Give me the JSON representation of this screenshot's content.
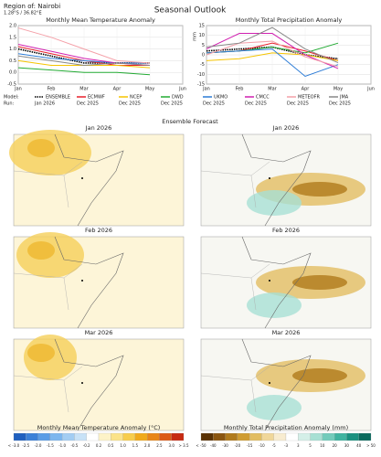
{
  "header": {
    "region": "Region of: Nairobi",
    "coords": "1.28°S / 36.82°E",
    "title": "Seasonal Outlook"
  },
  "legend": {
    "model_label": "Model:",
    "run_label": "Run:",
    "runs": [
      "Jan 2026",
      "Dec 2025",
      "Dec 2025",
      "Dec 2025",
      "Dec 2025",
      "Dec 2025",
      "Dec 2025",
      "Dec 2025"
    ]
  },
  "chart_data": [
    {
      "type": "line",
      "title": "Monthly Mean Temperature Anomaly",
      "categories": [
        "Jan",
        "Feb",
        "Mar",
        "Apr",
        "May",
        "Jun"
      ],
      "ylim": [
        -0.5,
        2.0
      ],
      "yticks": [
        -0.5,
        {
          "value": 0,
          "label": "0.0"
        },
        0.5,
        {
          "value": 1,
          "label": "1.0"
        },
        1.5,
        {
          "value": 2,
          "label": "2.0"
        }
      ],
      "grid": true,
      "series": [
        {
          "name": "ENSEMBLE",
          "color": "#000000",
          "dashed": true,
          "values": [
            1.0,
            0.7,
            0.4,
            0.4,
            0.4,
            null
          ]
        },
        {
          "name": "ECMWF",
          "color": "#e8202a",
          "values": [
            1.1,
            0.8,
            0.5,
            0.3,
            0.3,
            null
          ]
        },
        {
          "name": "NCEP",
          "color": "#f5c400",
          "values": [
            0.5,
            0.3,
            0.3,
            0.3,
            0.2,
            null
          ]
        },
        {
          "name": "DWD",
          "color": "#22aa33",
          "values": [
            0.2,
            0.1,
            0.0,
            0.0,
            -0.1,
            null
          ]
        },
        {
          "name": "UKMO",
          "color": "#2b7bd6",
          "values": [
            0.8,
            0.6,
            0.5,
            0.4,
            0.4,
            null
          ]
        },
        {
          "name": "CMCC",
          "color": "#d020b0",
          "values": [
            1.2,
            0.9,
            0.6,
            0.4,
            0.3,
            null
          ]
        },
        {
          "name": "METEOFR",
          "color": "#f4a0a8",
          "values": [
            1.9,
            1.5,
            1.0,
            0.5,
            0.4,
            null
          ]
        },
        {
          "name": "JMA",
          "color": "#888888",
          "values": [
            0.7,
            0.5,
            0.3,
            0.4,
            0.3,
            null
          ]
        }
      ]
    },
    {
      "type": "line",
      "title": "Monthly Total Precipitation Anomaly",
      "ylabel": "mm",
      "categories": [
        "Jan",
        "Feb",
        "Mar",
        "Apr",
        "May",
        "Jun"
      ],
      "ylim": [
        -15,
        15
      ],
      "yticks": [
        -15,
        -10,
        -5,
        0,
        5,
        10,
        15
      ],
      "grid": true,
      "series": [
        {
          "color": "#000000",
          "dashed": true,
          "values": [
            2,
            3,
            4,
            0,
            -2,
            null
          ]
        },
        {
          "color": "#e8202a",
          "values": [
            1,
            2,
            6,
            2,
            -3,
            null
          ]
        },
        {
          "color": "#f5c400",
          "values": [
            -3,
            -2,
            1,
            0,
            -3,
            null
          ]
        },
        {
          "color": "#22aa33",
          "values": [
            1,
            2,
            4,
            1,
            6,
            null
          ]
        },
        {
          "color": "#2b7bd6",
          "values": [
            1,
            2,
            3,
            -11,
            -5,
            null
          ]
        },
        {
          "color": "#d020b0",
          "values": [
            3,
            11,
            11,
            0,
            -7,
            null
          ]
        },
        {
          "color": "#f4a0a8",
          "values": [
            0,
            6,
            7,
            -1,
            -6,
            null
          ]
        },
        {
          "color": "#888888",
          "values": [
            4,
            6,
            14,
            3,
            -4,
            null
          ]
        }
      ]
    }
  ],
  "forecast": {
    "title": "Ensemble Forecast",
    "rows": [
      {
        "left": "Jan 2026",
        "right": "Jan 2026"
      },
      {
        "left": "Feb 2026",
        "right": "Feb 2026"
      },
      {
        "left": "Mar 2026",
        "right": "Mar 2026"
      }
    ]
  },
  "colorbars": [
    {
      "label": "Monthly Mean Temperature Anomaly (°C)",
      "ticks": [
        "< -3.0",
        "-2.5",
        "-2.0",
        "-1.5",
        "-1.0",
        "-0.5",
        "-0.2",
        "0.2",
        "0.5",
        "1.0",
        "1.5",
        "2.0",
        "2.5",
        "3.0",
        "> 3.5"
      ],
      "colors": [
        "#1f5fbf",
        "#3a80d8",
        "#5a9ce6",
        "#7db6ee",
        "#a3cdf3",
        "#c8e2f7",
        "#ffffff",
        "#fdf3c8",
        "#fbe38a",
        "#f7cd4c",
        "#f0aa1c",
        "#e8861a",
        "#dc5a18",
        "#c62a12"
      ]
    },
    {
      "label": "Monthly Total Precipitation Anomaly (mm)",
      "ticks": [
        "< -50",
        "-40",
        "-30",
        "-20",
        "-15",
        "-10",
        "-5",
        "-3",
        "3",
        "5",
        "10",
        "20",
        "30",
        "40",
        "> 50"
      ],
      "colors": [
        "#5a3205",
        "#8a5510",
        "#b07a1c",
        "#cf9c32",
        "#e2bd62",
        "#f0d79a",
        "#f8ecd0",
        "#ffffff",
        "#d4efe8",
        "#a8e0d4",
        "#73cbbb",
        "#3fb3a0",
        "#1a9080",
        "#0a6a5e"
      ]
    }
  ]
}
